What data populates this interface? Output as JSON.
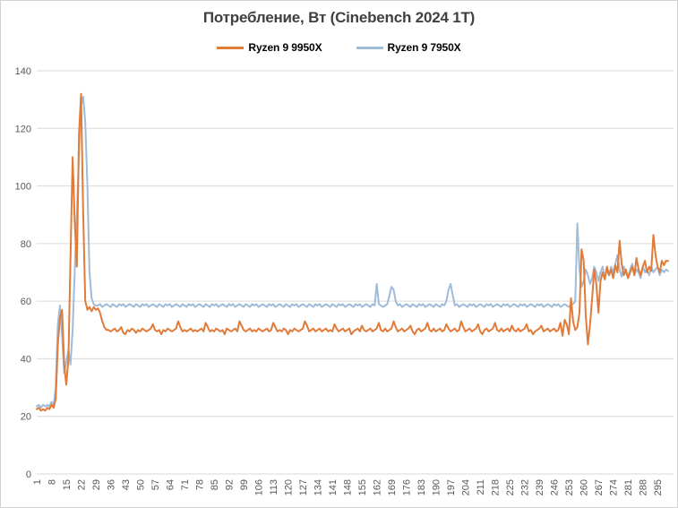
{
  "chart_data": {
    "type": "line",
    "title": "Потребление, Вт (Cinebench 2024 1T)",
    "xlabel": "",
    "ylabel": "",
    "ylim": [
      0,
      140
    ],
    "grid": "horizontal",
    "legend_position": "top",
    "y_ticks": [
      0,
      20,
      40,
      60,
      80,
      100,
      120,
      140
    ],
    "x_ticks": [
      1,
      8,
      15,
      22,
      29,
      36,
      43,
      50,
      57,
      64,
      71,
      78,
      85,
      92,
      99,
      106,
      113,
      120,
      127,
      134,
      141,
      148,
      155,
      162,
      169,
      176,
      183,
      190,
      197,
      204,
      211,
      218,
      225,
      232,
      239,
      246,
      253,
      260,
      267,
      274,
      281,
      288,
      295
    ],
    "title_color": "#404040",
    "axis_text_color": "#595959",
    "grid_color": "#d9d9d9",
    "series": [
      {
        "name": "Ryzen 9 9950X",
        "color": "#e07b39",
        "values": [
          22.5,
          23,
          22,
          22.5,
          22,
          23,
          22.5,
          24,
          23,
          26,
          45,
          54,
          57,
          38,
          31,
          40,
          75,
          110,
          88,
          72,
          118,
          132,
          90,
          60,
          57,
          58,
          56.5,
          58,
          57,
          57.5,
          56,
          53,
          51,
          50,
          50,
          49.5,
          50,
          50.5,
          49.5,
          50,
          51,
          49,
          48.5,
          50,
          49.5,
          50.5,
          50,
          49,
          50,
          49.5,
          50.5,
          50,
          49.5,
          50,
          50.5,
          52,
          50,
          49.5,
          50,
          48.5,
          50,
          49.5,
          50.5,
          50,
          49.5,
          50,
          50.5,
          53,
          51,
          49.5,
          50,
          49.5,
          50,
          50.5,
          49.5,
          50,
          49.5,
          50,
          50.5,
          49.5,
          52.5,
          51,
          49.5,
          50,
          49.5,
          50.5,
          50,
          49.5,
          50,
          48.5,
          50.5,
          50,
          49.5,
          50,
          50.5,
          49.5,
          53,
          51.5,
          50,
          49.5,
          50,
          50.5,
          49.5,
          50,
          49.5,
          50.5,
          50,
          49.5,
          50,
          50.5,
          49.5,
          50,
          52.5,
          51,
          49.5,
          50,
          49.5,
          50.5,
          50,
          48.5,
          50,
          49.5,
          50.5,
          50,
          49.5,
          50,
          50.5,
          53,
          51.5,
          49.5,
          50,
          50.5,
          49.5,
          50,
          50.5,
          49.5,
          50,
          50.5,
          49.5,
          50,
          49.5,
          52,
          50.5,
          49.5,
          50,
          50.5,
          49.5,
          50,
          50.5,
          48.5,
          49.5,
          50,
          50.5,
          49.5,
          51.5,
          50,
          49.5,
          50,
          50.5,
          49.5,
          50,
          50.5,
          52.5,
          50,
          49.5,
          50.5,
          49.5,
          50,
          50.5,
          53,
          51,
          49.5,
          50,
          50.5,
          49.5,
          50,
          50.5,
          51.5,
          49.5,
          48.5,
          50,
          50.5,
          49.5,
          50,
          50.5,
          52.5,
          50,
          49.5,
          50.5,
          49.5,
          50,
          50.5,
          49.5,
          50,
          52,
          50.5,
          49.5,
          50,
          50.5,
          49.5,
          50,
          53,
          51,
          49.5,
          50,
          50.5,
          49.5,
          50,
          50.5,
          52,
          49.5,
          48.5,
          50,
          50.5,
          49.5,
          50,
          50.5,
          52.5,
          50,
          49.5,
          50.5,
          49.5,
          50,
          50.5,
          49.5,
          51.5,
          50,
          49.5,
          50.5,
          49.5,
          50,
          50.5,
          52,
          49.5,
          50,
          48.5,
          49.5,
          50,
          50.5,
          51.5,
          49.5,
          50,
          50.5,
          49.5,
          50,
          50.5,
          49.5,
          50,
          52.5,
          48,
          53.5,
          52,
          48.5,
          61,
          53,
          50,
          51,
          56,
          78,
          74,
          55,
          45,
          52,
          61,
          71,
          66,
          56,
          67,
          70,
          67.5,
          72,
          69,
          71,
          68,
          72.5,
          70,
          81,
          73,
          69,
          71,
          68,
          70,
          72,
          69,
          75,
          71,
          69,
          72,
          74,
          70,
          72,
          70.5,
          83,
          76,
          72,
          70,
          74,
          72.5,
          74,
          74
        ]
      },
      {
        "name": "Ryzen 9 7950X",
        "color": "#9fbcd8",
        "values": [
          23.5,
          24,
          23,
          24,
          23.5,
          24,
          23.5,
          25,
          24,
          30,
          52,
          58.5,
          48,
          35,
          39,
          43,
          38,
          50,
          70,
          90,
          112,
          128,
          131,
          122,
          100,
          70,
          61,
          59,
          58.5,
          58.5,
          59,
          58,
          58.5,
          59,
          58.5,
          58,
          59,
          58.5,
          58,
          59,
          58.5,
          59,
          58,
          58.5,
          59,
          58.5,
          58,
          59,
          58.5,
          58,
          59,
          58.5,
          59,
          58,
          58.5,
          59,
          58.5,
          58,
          59,
          58.5,
          58,
          59,
          58.5,
          59,
          58,
          58.5,
          59,
          58.5,
          58,
          59,
          58.5,
          58,
          59,
          58.5,
          59,
          58,
          58.5,
          59,
          58.5,
          58,
          59,
          58.5,
          58,
          59,
          58.5,
          59,
          58,
          58.5,
          59,
          58.5,
          58,
          59,
          58.5,
          59,
          58,
          58.5,
          59,
          58.5,
          58,
          59,
          58.5,
          58,
          59,
          58.5,
          59,
          58,
          58.5,
          59,
          58.5,
          58,
          59,
          58.5,
          59,
          58,
          58.5,
          59,
          58.5,
          58,
          59,
          58.5,
          58,
          59,
          58.5,
          59,
          58,
          58.5,
          59,
          58.5,
          58,
          59,
          58.5,
          58,
          59,
          58.5,
          59,
          58,
          58.5,
          59,
          58.5,
          58,
          59,
          58.5,
          58,
          59,
          58.5,
          59,
          58,
          58.5,
          59,
          58.5,
          58,
          59,
          58.5,
          59,
          58,
          58.5,
          59,
          58.5,
          58,
          59,
          58.5,
          66,
          59,
          58.5,
          58,
          58.5,
          59,
          62,
          65,
          64,
          60,
          58.5,
          59,
          58,
          58.5,
          59,
          58.5,
          58,
          59,
          58.5,
          58,
          59,
          58.5,
          59,
          58,
          58.5,
          59,
          58.5,
          58,
          59,
          58.5,
          58,
          59,
          58.5,
          60,
          64,
          66,
          62,
          58.5,
          59,
          58,
          58.5,
          59,
          58.5,
          58,
          59,
          58.5,
          59,
          58,
          58.5,
          59,
          58.5,
          58,
          59,
          58.5,
          59,
          58,
          58.5,
          59,
          58.5,
          58,
          59,
          58.5,
          59,
          58,
          58.5,
          59,
          58.5,
          58,
          59,
          58.5,
          59,
          58,
          58.5,
          59,
          58.5,
          58,
          59,
          58.5,
          59,
          58,
          58.5,
          59,
          58.5,
          58,
          59,
          58.5,
          59,
          58,
          58.5,
          59,
          58.5,
          58,
          59,
          59,
          60,
          87,
          71,
          65,
          67,
          71,
          69,
          66,
          68,
          72,
          70,
          67,
          70,
          72,
          68,
          71,
          69,
          72,
          70,
          73,
          76,
          71,
          68.5,
          72,
          70,
          68,
          71,
          73,
          69,
          71,
          70,
          68,
          72,
          70,
          71,
          69,
          72,
          70,
          71,
          72,
          69,
          71,
          70,
          71,
          70.5
        ]
      }
    ]
  }
}
